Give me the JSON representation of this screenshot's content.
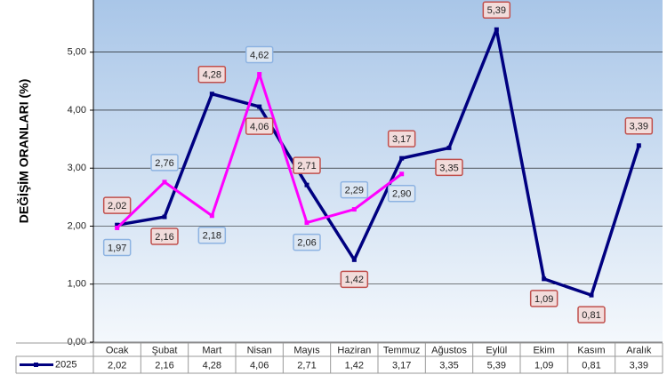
{
  "chart_data": {
    "type": "line",
    "y_label": "DEĞİŞİM ORANLARI (%)",
    "categories": [
      "Ocak",
      "Şubat",
      "Mart",
      "Nisan",
      "Mayıs",
      "Haziran",
      "Temmuz",
      "Ağustos",
      "Eylül",
      "Ekim",
      "Kasım",
      "Aralık"
    ],
    "series": [
      {
        "name": "2025",
        "color": "#000080",
        "values": [
          2.02,
          2.16,
          4.28,
          4.06,
          2.71,
          1.42,
          3.17,
          3.35,
          5.39,
          1.09,
          0.81,
          3.39
        ],
        "value_labels": [
          "2,02",
          "2,16",
          "4,28",
          "4,06",
          "2,71",
          "1,42",
          "3,17",
          "3,35",
          "5,39",
          "1,09",
          "0,81",
          "3,39"
        ]
      },
      {
        "color": "#ff00ff",
        "values": [
          1.97,
          2.76,
          2.18,
          4.62,
          2.06,
          2.29,
          2.9,
          null,
          null,
          null,
          null,
          null
        ],
        "value_labels": [
          "1,97",
          "2,76",
          "2,18",
          "4,62",
          "2,06",
          "2,29",
          "2,90",
          null,
          null,
          null,
          null,
          null
        ]
      }
    ],
    "ylim": [
      0,
      5.9
    ],
    "yticks": [
      {
        "value": 0,
        "label": "0,00"
      },
      {
        "value": 1,
        "label": "1,00"
      },
      {
        "value": 2,
        "label": "2,00"
      },
      {
        "value": 3,
        "label": "3,00"
      },
      {
        "value": 4,
        "label": "4,00"
      },
      {
        "value": 5,
        "label": "5,00"
      }
    ],
    "grid": true
  }
}
